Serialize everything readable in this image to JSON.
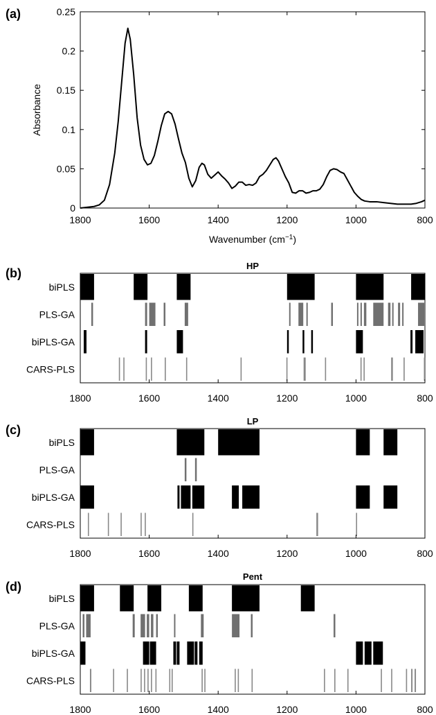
{
  "chart_data": [
    {
      "type": "line",
      "panel_label": "(a)",
      "xlabel": "Wavenumber (cm",
      "xlabel_sup": "−1",
      "xlabel_close": ")",
      "ylabel": "Absorbance",
      "xlim": [
        1800,
        800
      ],
      "ylim": [
        0,
        0.25
      ],
      "x_ticks": [
        1800,
        1600,
        1400,
        1200,
        1000,
        800
      ],
      "y_ticks": [
        0,
        0.05,
        0.1,
        0.15,
        0.2,
        0.25
      ],
      "y_tick_labels": [
        "0",
        "0.05",
        "0.1",
        "0.15",
        "0.2",
        "0.25"
      ],
      "series": [
        {
          "color": "#000000",
          "points": [
            [
              1800,
              0.0
            ],
            [
              1780,
              0.001
            ],
            [
              1760,
              0.002
            ],
            [
              1745,
              0.004
            ],
            [
              1730,
              0.01
            ],
            [
              1715,
              0.03
            ],
            [
              1700,
              0.07
            ],
            [
              1690,
              0.11
            ],
            [
              1680,
              0.16
            ],
            [
              1670,
              0.21
            ],
            [
              1662,
              0.229
            ],
            [
              1655,
              0.215
            ],
            [
              1645,
              0.17
            ],
            [
              1635,
              0.115
            ],
            [
              1625,
              0.08
            ],
            [
              1615,
              0.062
            ],
            [
              1605,
              0.055
            ],
            [
              1595,
              0.057
            ],
            [
              1585,
              0.067
            ],
            [
              1575,
              0.085
            ],
            [
              1565,
              0.105
            ],
            [
              1555,
              0.12
            ],
            [
              1545,
              0.123
            ],
            [
              1535,
              0.12
            ],
            [
              1525,
              0.107
            ],
            [
              1515,
              0.088
            ],
            [
              1505,
              0.07
            ],
            [
              1495,
              0.058
            ],
            [
              1485,
              0.038
            ],
            [
              1475,
              0.027
            ],
            [
              1465,
              0.035
            ],
            [
              1455,
              0.052
            ],
            [
              1447,
              0.057
            ],
            [
              1440,
              0.055
            ],
            [
              1430,
              0.043
            ],
            [
              1420,
              0.038
            ],
            [
              1410,
              0.042
            ],
            [
              1400,
              0.046
            ],
            [
              1390,
              0.041
            ],
            [
              1380,
              0.037
            ],
            [
              1370,
              0.032
            ],
            [
              1360,
              0.025
            ],
            [
              1350,
              0.028
            ],
            [
              1340,
              0.033
            ],
            [
              1330,
              0.033
            ],
            [
              1320,
              0.029
            ],
            [
              1310,
              0.03
            ],
            [
              1300,
              0.029
            ],
            [
              1290,
              0.032
            ],
            [
              1280,
              0.04
            ],
            [
              1270,
              0.043
            ],
            [
              1260,
              0.048
            ],
            [
              1250,
              0.055
            ],
            [
              1240,
              0.062
            ],
            [
              1232,
              0.064
            ],
            [
              1225,
              0.06
            ],
            [
              1215,
              0.05
            ],
            [
              1205,
              0.04
            ],
            [
              1195,
              0.032
            ],
            [
              1185,
              0.02
            ],
            [
              1175,
              0.019
            ],
            [
              1165,
              0.022
            ],
            [
              1155,
              0.022
            ],
            [
              1145,
              0.019
            ],
            [
              1135,
              0.02
            ],
            [
              1125,
              0.022
            ],
            [
              1115,
              0.022
            ],
            [
              1105,
              0.024
            ],
            [
              1095,
              0.03
            ],
            [
              1085,
              0.04
            ],
            [
              1075,
              0.048
            ],
            [
              1065,
              0.05
            ],
            [
              1055,
              0.049
            ],
            [
              1045,
              0.046
            ],
            [
              1035,
              0.044
            ],
            [
              1025,
              0.036
            ],
            [
              1015,
              0.028
            ],
            [
              1005,
              0.02
            ],
            [
              995,
              0.015
            ],
            [
              985,
              0.011
            ],
            [
              975,
              0.009
            ],
            [
              960,
              0.008
            ],
            [
              940,
              0.008
            ],
            [
              920,
              0.007
            ],
            [
              900,
              0.006
            ],
            [
              880,
              0.005
            ],
            [
              860,
              0.005
            ],
            [
              840,
              0.005
            ],
            [
              825,
              0.006
            ],
            [
              810,
              0.008
            ],
            [
              800,
              0.01
            ]
          ]
        }
      ]
    },
    {
      "type": "interval-selection",
      "panel_label": "(b)",
      "title": "HP",
      "xlim": [
        1800,
        800
      ],
      "x_ticks": [
        1800,
        1600,
        1400,
        1200,
        1000,
        800
      ],
      "rows": [
        {
          "name": "biPLS",
          "color": "#000000",
          "intervals": [
            [
              1800,
              1760
            ],
            [
              1645,
              1605
            ],
            [
              1520,
              1480
            ],
            [
              1200,
              1120
            ],
            [
              1000,
              920
            ],
            [
              840,
              800
            ]
          ]
        },
        {
          "name": "PLS-GA",
          "color": "#707070",
          "intervals": [
            [
              1768,
              1763
            ],
            [
              1612,
              1606
            ],
            [
              1600,
              1582
            ],
            [
              1558,
              1553
            ],
            [
              1497,
              1487
            ],
            [
              1194,
              1190
            ],
            [
              1167,
              1153
            ],
            [
              1144,
              1140
            ],
            [
              1072,
              1067
            ],
            [
              997,
              993
            ],
            [
              987,
              983
            ],
            [
              977,
              970
            ],
            [
              950,
              920
            ],
            [
              907,
              900
            ],
            [
              895,
              891
            ],
            [
              878,
              872
            ],
            [
              866,
              862
            ],
            [
              820,
              802
            ]
          ]
        },
        {
          "name": "biPLS-GA",
          "color": "#000000",
          "intervals": [
            [
              1790,
              1782
            ],
            [
              1612,
              1606
            ],
            [
              1520,
              1502
            ],
            [
              1200,
              1195
            ],
            [
              1155,
              1150
            ],
            [
              1130,
              1125
            ],
            [
              1000,
              980
            ],
            [
              842,
              836
            ],
            [
              828,
              804
            ]
          ]
        },
        {
          "name": "CARS-PLS",
          "color": "#888888",
          "intervals": [
            [
              1688,
              1685
            ],
            [
              1675,
              1672
            ],
            [
              1610,
              1607
            ],
            [
              1595,
              1592
            ],
            [
              1555,
              1552
            ],
            [
              1493,
              1490
            ],
            [
              1335,
              1332
            ],
            [
              1202,
              1199
            ],
            [
              1152,
              1146
            ],
            [
              1090,
              1087
            ],
            [
              987,
              984
            ],
            [
              978,
              975
            ],
            [
              898,
              893
            ],
            [
              862,
              859
            ],
            [
              803,
              800
            ]
          ]
        }
      ]
    },
    {
      "type": "interval-selection",
      "panel_label": "(c)",
      "title": "LP",
      "xlim": [
        1800,
        800
      ],
      "x_ticks": [
        1800,
        1600,
        1400,
        1200,
        1000,
        800
      ],
      "rows": [
        {
          "name": "biPLS",
          "color": "#000000",
          "intervals": [
            [
              1800,
              1760
            ],
            [
              1520,
              1440
            ],
            [
              1400,
              1280
            ],
            [
              1000,
              960
            ],
            [
              920,
              880
            ]
          ]
        },
        {
          "name": "PLS-GA",
          "color": "#707070",
          "intervals": [
            [
              1497,
              1492
            ],
            [
              1467,
              1462
            ]
          ]
        },
        {
          "name": "biPLS-GA",
          "color": "#000000",
          "intervals": [
            [
              1800,
              1760
            ],
            [
              1518,
              1512
            ],
            [
              1508,
              1480
            ],
            [
              1475,
              1440
            ],
            [
              1360,
              1340
            ],
            [
              1330,
              1280
            ],
            [
              1000,
              960
            ],
            [
              920,
              880
            ]
          ]
        },
        {
          "name": "CARS-PLS",
          "color": "#888888",
          "intervals": [
            [
              1778,
              1775
            ],
            [
              1720,
              1717
            ],
            [
              1683,
              1680
            ],
            [
              1625,
              1622
            ],
            [
              1613,
              1610
            ],
            [
              1475,
              1472
            ],
            [
              1115,
              1110
            ],
            [
              1000,
              997
            ]
          ]
        }
      ]
    },
    {
      "type": "interval-selection",
      "panel_label": "(d)",
      "title": "Pent",
      "xlim": [
        1800,
        800
      ],
      "x_ticks": [
        1800,
        1600,
        1400,
        1200,
        1000,
        800
      ],
      "rows": [
        {
          "name": "biPLS",
          "color": "#000000",
          "intervals": [
            [
              1800,
              1760
            ],
            [
              1685,
              1645
            ],
            [
              1605,
              1565
            ],
            [
              1485,
              1445
            ],
            [
              1360,
              1280
            ],
            [
              1160,
              1120
            ]
          ]
        },
        {
          "name": "PLS-GA",
          "color": "#707070",
          "intervals": [
            [
              1793,
              1788
            ],
            [
              1783,
              1770
            ],
            [
              1648,
              1642
            ],
            [
              1625,
              1612
            ],
            [
              1607,
              1600
            ],
            [
              1595,
              1588
            ],
            [
              1580,
              1575
            ],
            [
              1528,
              1524
            ],
            [
              1450,
              1442
            ],
            [
              1360,
              1338
            ],
            [
              1305,
              1300
            ],
            [
              1065,
              1060
            ]
          ]
        },
        {
          "name": "biPLS-GA",
          "color": "#000000",
          "intervals": [
            [
              1800,
              1785
            ],
            [
              1618,
              1600
            ],
            [
              1598,
              1580
            ],
            [
              1530,
              1522
            ],
            [
              1520,
              1512
            ],
            [
              1490,
              1470
            ],
            [
              1468,
              1460
            ],
            [
              1455,
              1445
            ],
            [
              1000,
              980
            ],
            [
              975,
              955
            ],
            [
              950,
              922
            ]
          ]
        },
        {
          "name": "CARS-PLS",
          "color": "#888888",
          "intervals": [
            [
              1772,
              1768
            ],
            [
              1705,
              1702
            ],
            [
              1665,
              1662
            ],
            [
              1625,
              1622
            ],
            [
              1615,
              1612
            ],
            [
              1605,
              1602
            ],
            [
              1595,
              1592
            ],
            [
              1582,
              1579
            ],
            [
              1542,
              1539
            ],
            [
              1535,
              1532
            ],
            [
              1448,
              1445
            ],
            [
              1440,
              1437
            ],
            [
              1352,
              1349
            ],
            [
              1343,
              1340
            ],
            [
              1303,
              1300
            ],
            [
              1093,
              1090
            ],
            [
              1063,
              1060
            ],
            [
              1025,
              1022
            ],
            [
              928,
              925
            ],
            [
              898,
              895
            ],
            [
              855,
              852
            ],
            [
              840,
              836
            ],
            [
              830,
              826
            ]
          ]
        }
      ]
    }
  ]
}
